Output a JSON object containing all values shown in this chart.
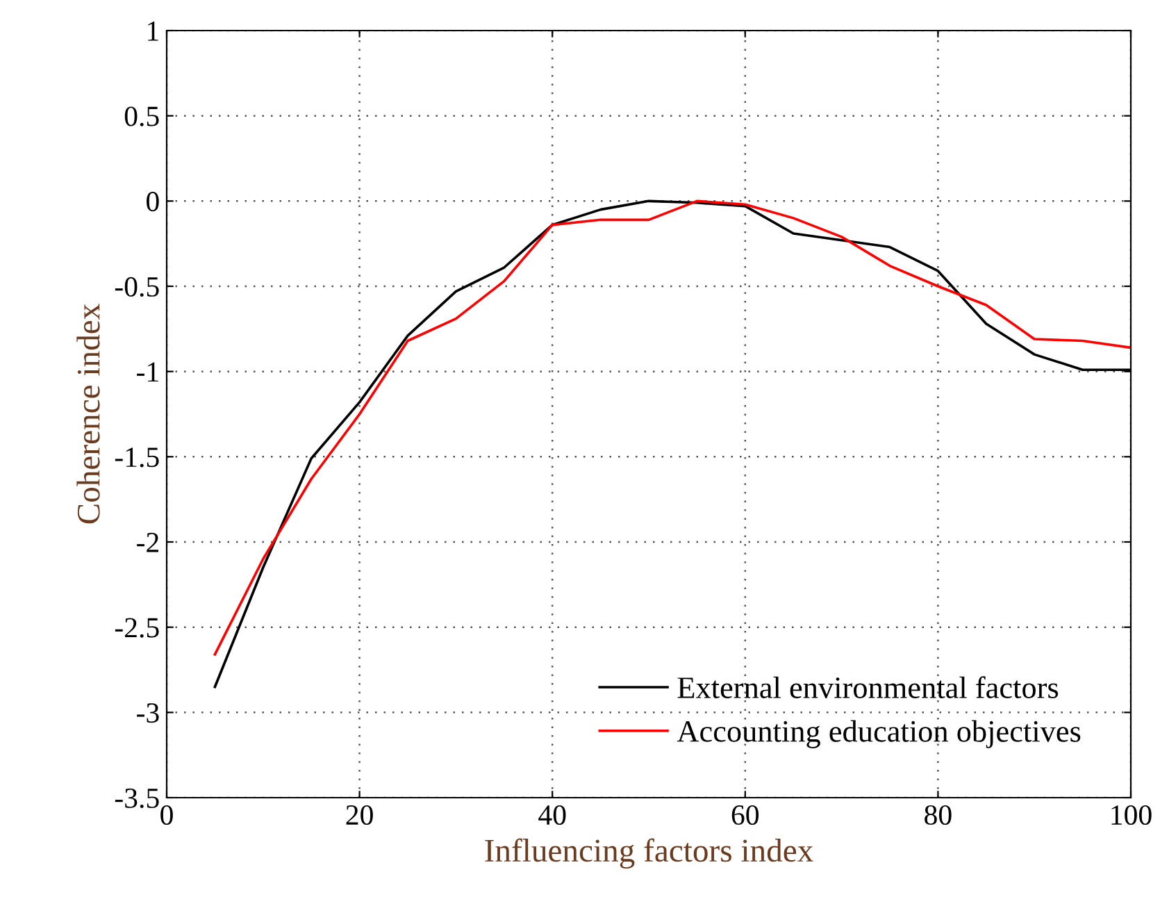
{
  "chart_data": {
    "type": "line",
    "xlabel": "Influencing factors index",
    "ylabel": "Coherence index",
    "x": [
      5,
      10,
      15,
      20,
      25,
      30,
      35,
      40,
      45,
      50,
      55,
      60,
      65,
      70,
      75,
      80,
      85,
      90,
      95,
      100
    ],
    "series": [
      {
        "name": "External environmental factors",
        "color": "#000000",
        "values": [
          -2.85,
          -2.15,
          -1.51,
          -1.18,
          -0.79,
          -0.53,
          -0.39,
          -0.14,
          -0.05,
          0,
          -0.01,
          -0.03,
          -0.19,
          -0.23,
          -0.27,
          -0.41,
          -0.72,
          -0.9,
          -0.99,
          -0.99
        ]
      },
      {
        "name": "Accounting education objectives",
        "color": "#ff0000",
        "values": [
          -2.66,
          -2.1,
          -1.63,
          -1.25,
          -0.82,
          -0.69,
          -0.47,
          -0.14,
          -0.11,
          -0.11,
          0,
          -0.02,
          -0.1,
          -0.21,
          -0.38,
          -0.5,
          -0.61,
          -0.81,
          -0.82,
          -0.86
        ]
      }
    ],
    "xlim": [
      0,
      100
    ],
    "xticks": [
      0,
      20,
      40,
      60,
      80,
      100
    ],
    "ylim": [
      -3.5,
      1
    ],
    "yticks": [
      -3.5,
      -3,
      -2.5,
      -2,
      -1.5,
      -1,
      -0.5,
      0,
      0.5,
      1
    ],
    "grid": true,
    "legend": "bottom right",
    "marker": "none",
    "line_style": "solid"
  }
}
